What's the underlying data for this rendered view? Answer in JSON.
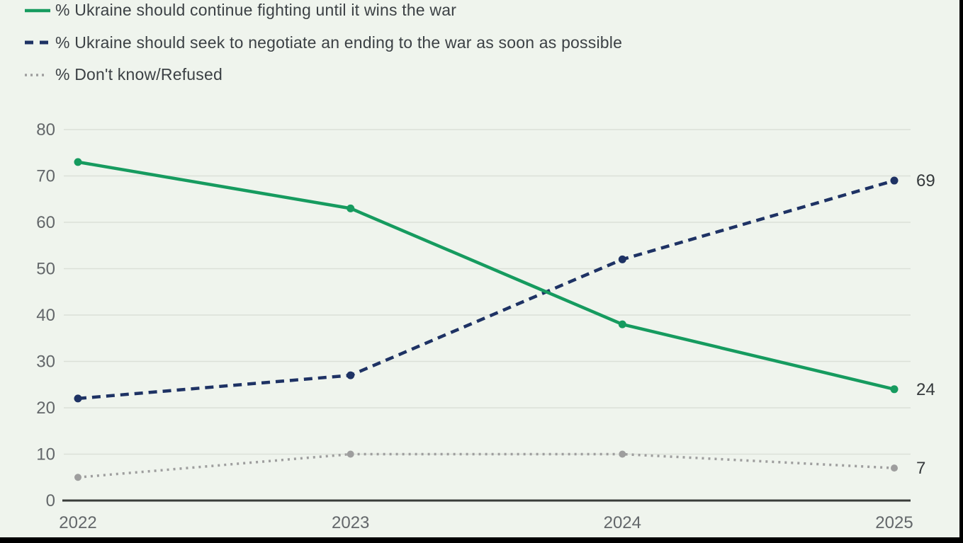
{
  "colors": {
    "background": "#eff4ed",
    "fight_green": "#169b5f",
    "negotiate_navy": "#1e3264",
    "dontknow_gray": "#9e9e9e",
    "axis_text": "#63676a",
    "grid_line": "#dbe0d8",
    "axis_line": "#3a3d3a",
    "end_label_text": "#35393c",
    "frame_black": "#000000"
  },
  "legend": {
    "items": [
      {
        "label": "% Ukraine should continue fighting until it wins the war"
      },
      {
        "label": "% Ukraine should seek to negotiate an ending to the war as soon as possible"
      },
      {
        "label": "% Don't know/Refused"
      }
    ]
  },
  "chart_data": {
    "type": "line",
    "x": [
      "2022",
      "2023",
      "2024",
      "2025"
    ],
    "series": [
      {
        "name": "% Ukraine should continue fighting until it wins the war",
        "key": "fight",
        "style": "solid",
        "color": "#169b5f",
        "values": [
          73,
          63,
          38,
          24
        ],
        "end_label": "24"
      },
      {
        "name": "% Ukraine should seek to negotiate an ending to the war as soon as possible",
        "key": "negotiate",
        "style": "dashed",
        "color": "#1e3264",
        "values": [
          22,
          27,
          52,
          69
        ],
        "end_label": "69"
      },
      {
        "name": "% Don't know/Refused",
        "key": "dontknow",
        "style": "dotted",
        "color": "#9e9e9e",
        "values": [
          5,
          10,
          10,
          7
        ],
        "end_label": "7"
      }
    ],
    "ylim": [
      0,
      80
    ],
    "y_ticks": [
      0,
      10,
      20,
      30,
      40,
      50,
      60,
      70,
      80
    ],
    "grid": "horizontal",
    "legend_position": "top-left"
  }
}
